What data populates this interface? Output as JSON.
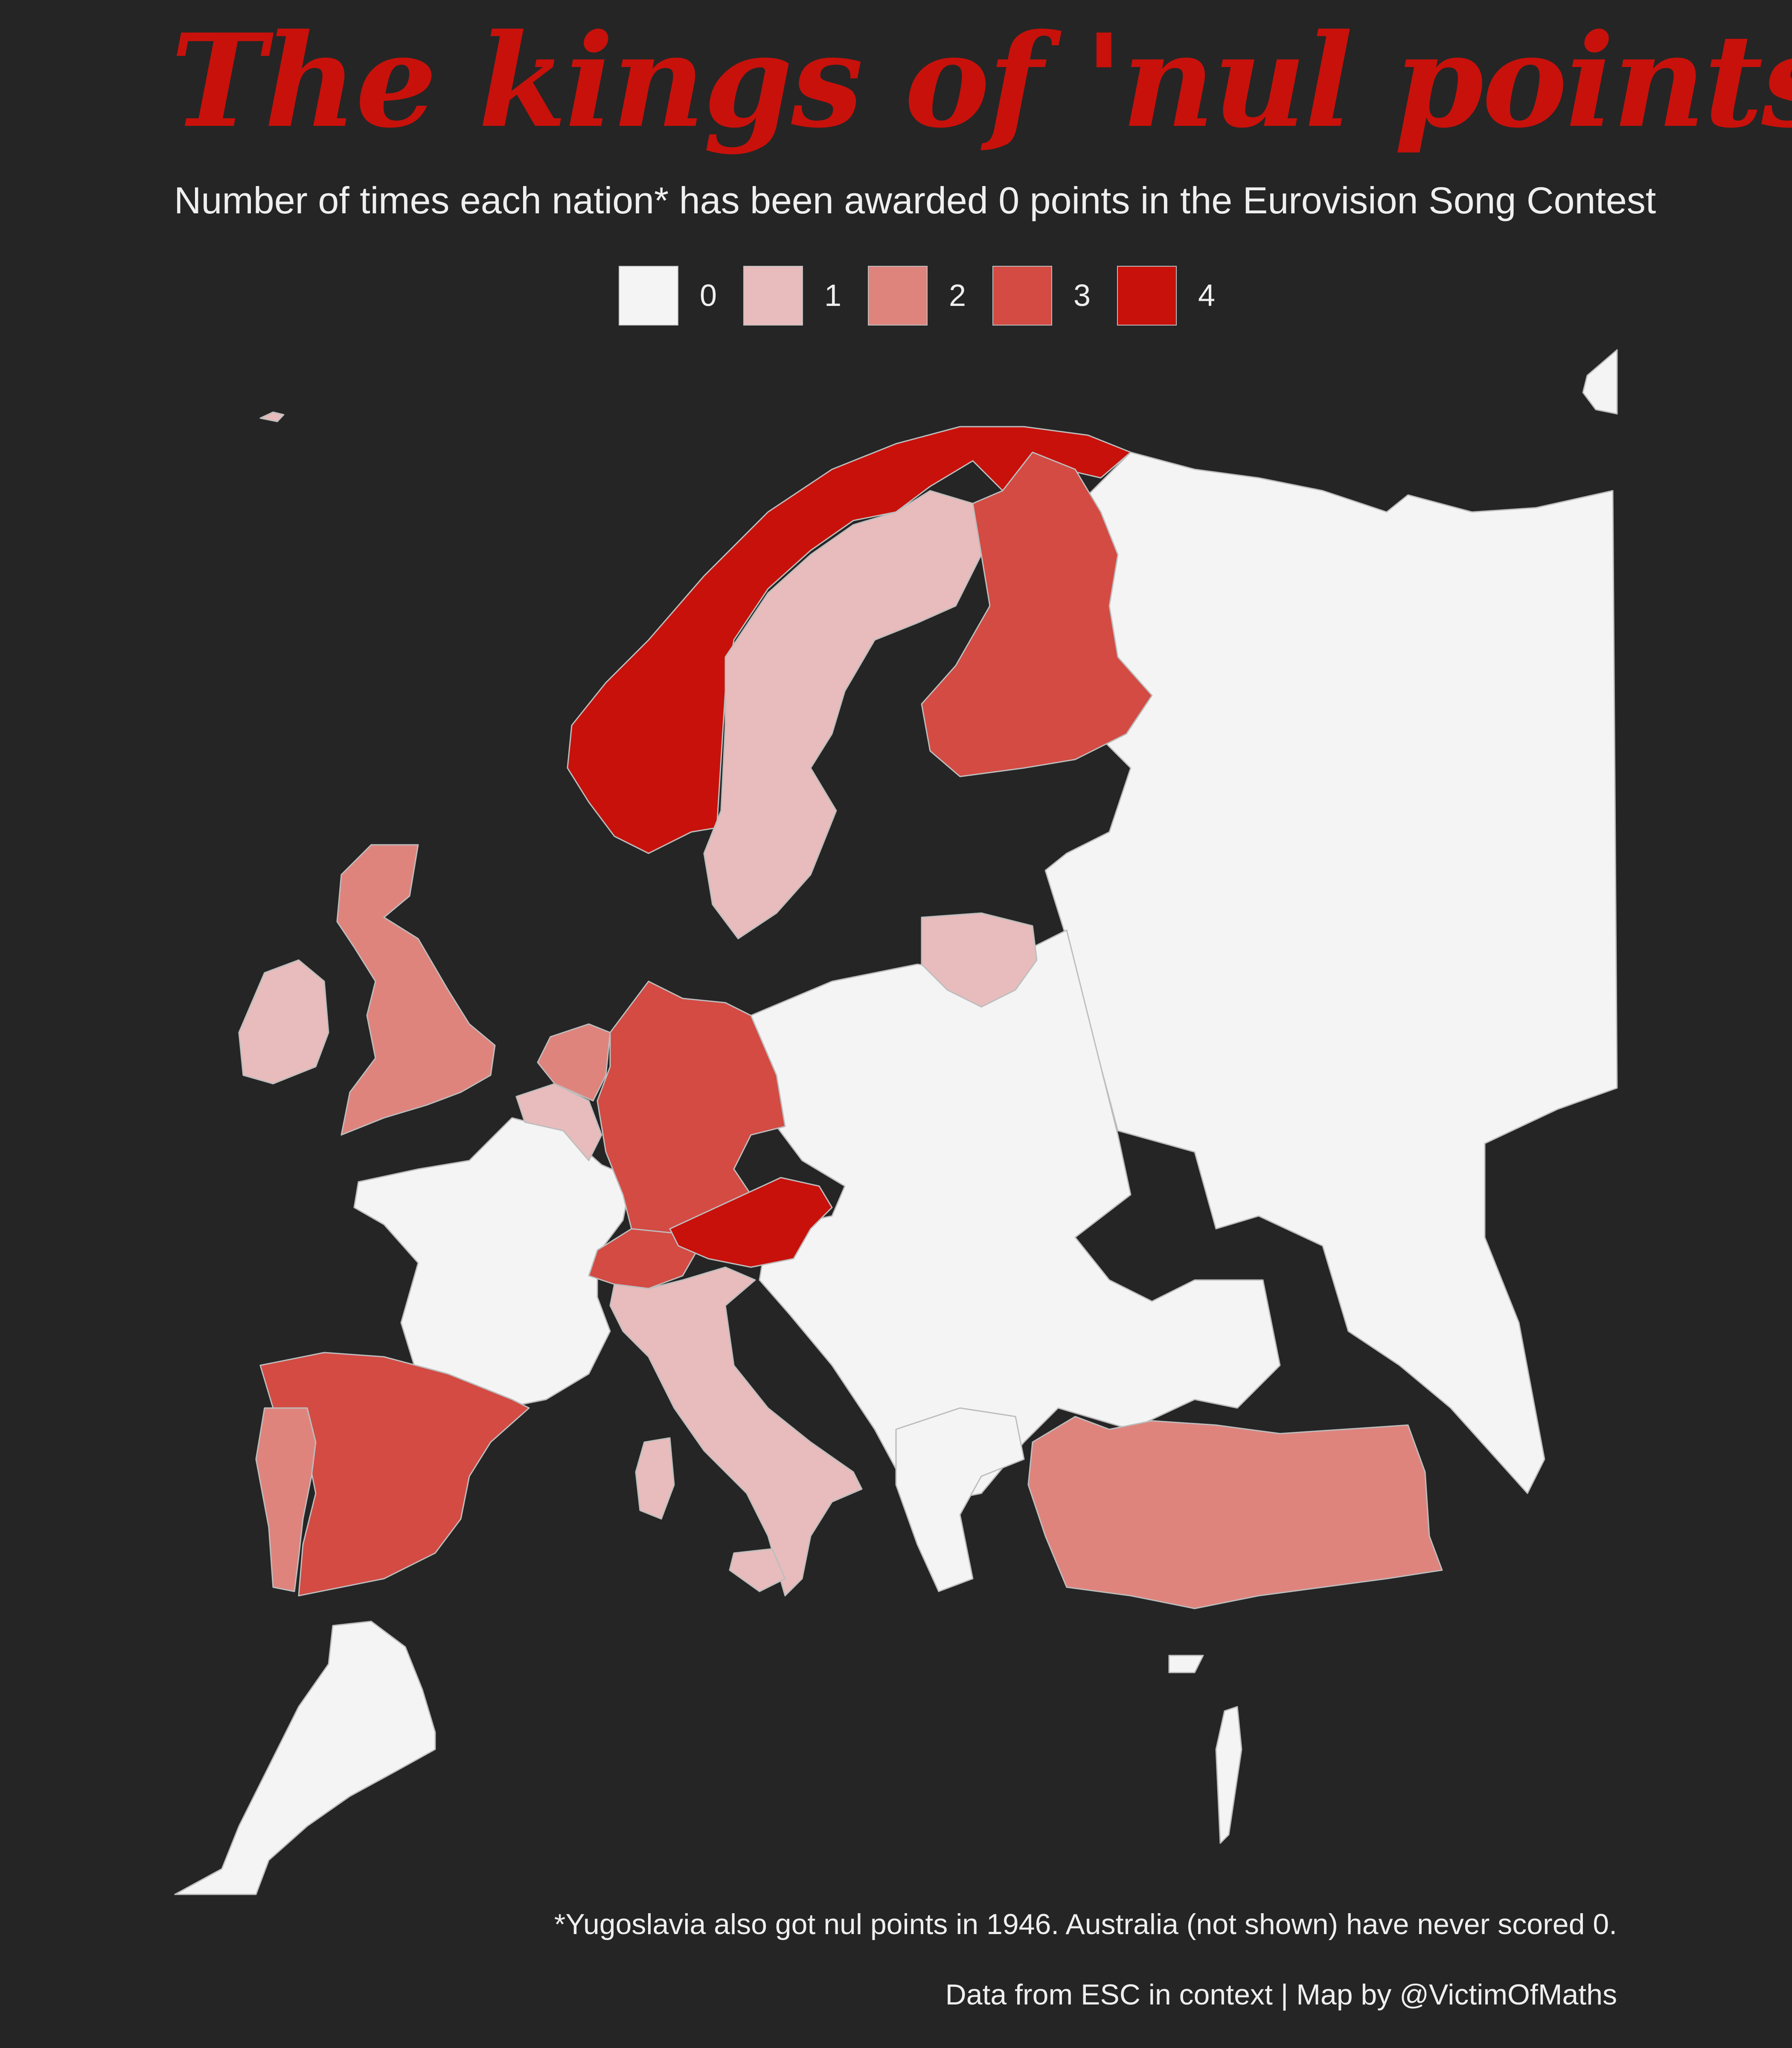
{
  "title": "The kings of 'nul points'",
  "subtitle": "Number of times each nation* has been awarded 0 points in the Eurovision Song Contest",
  "legend": [
    {
      "label": "0",
      "color": "#f4f4f4"
    },
    {
      "label": "1",
      "color": "#e8bcbc"
    },
    {
      "label": "2",
      "color": "#de847d"
    },
    {
      "label": "3",
      "color": "#d34b43"
    },
    {
      "label": "4",
      "color": "#c8110b"
    }
  ],
  "colors": {
    "background": "#252525",
    "sea": "#252525",
    "border": "#bdbdbd",
    "accent": "#c8110b"
  },
  "map_data": {
    "values": {
      "Norway": 4,
      "Austria": 4,
      "Finland": 3,
      "Germany": 3,
      "Spain": 3,
      "Switzerland": 3,
      "United Kingdom": 2,
      "Netherlands": 2,
      "Portugal": 2,
      "Turkey": 2,
      "Sweden": 1,
      "Lithuania": 1,
      "Italy": 1,
      "Belgium": 1,
      "Ireland": 1,
      "Iceland": 1,
      "France": 0,
      "Russia": 0,
      "Poland": 0
    }
  },
  "footnote": "*Yugoslavia also got nul points in 1946. Australia (not shown) have never scored 0.",
  "credit": "Data from ESC in context | Map by @VictimOfMaths"
}
